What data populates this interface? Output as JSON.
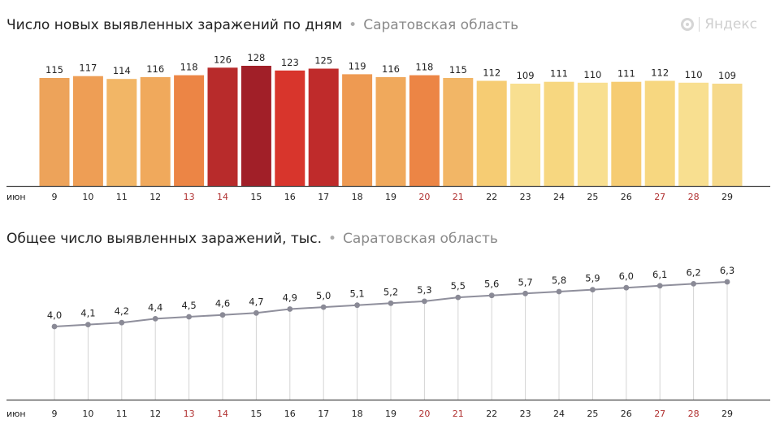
{
  "header": {
    "brand": "Яндекс",
    "brand_icon": "yandex-logo-icon"
  },
  "colors": {
    "weekend_tick": "#b03030",
    "weekday_tick": "#222222",
    "line": "#8f8f9c",
    "point": "#8a8a96"
  },
  "chart_data": [
    {
      "type": "bar",
      "title": "Число новых выявленных заражений по дням",
      "subtitle": "Саратовская область",
      "month_label": "июн",
      "categories": [
        "9",
        "10",
        "11",
        "12",
        "13",
        "14",
        "15",
        "16",
        "17",
        "18",
        "19",
        "20",
        "21",
        "22",
        "23",
        "24",
        "25",
        "26",
        "27",
        "28",
        "29"
      ],
      "weekend": [
        false,
        false,
        false,
        false,
        true,
        true,
        false,
        false,
        false,
        false,
        false,
        true,
        true,
        false,
        false,
        false,
        false,
        false,
        true,
        true,
        false
      ],
      "values": [
        115,
        117,
        114,
        116,
        118,
        126,
        128,
        123,
        125,
        119,
        116,
        118,
        115,
        112,
        109,
        111,
        110,
        111,
        112,
        110,
        109
      ],
      "bar_colors": [
        "#eda35a",
        "#ee9e55",
        "#f2b666",
        "#f0a95c",
        "#ec8545",
        "#b82b2b",
        "#a11f28",
        "#d8352c",
        "#bf2b2b",
        "#ee9a52",
        "#f0a95c",
        "#ec8545",
        "#f2b666",
        "#f6cc73",
        "#f8df90",
        "#f7d780",
        "#f8df90",
        "#f6cc73",
        "#f7d780",
        "#f8df90",
        "#f6d98a"
      ],
      "ylim": [
        0,
        128
      ]
    },
    {
      "type": "line",
      "title": "Общее число выявленных заражений, тыс.",
      "subtitle": "Саратовская область",
      "month_label": "июн",
      "categories": [
        "9",
        "10",
        "11",
        "12",
        "13",
        "14",
        "15",
        "16",
        "17",
        "18",
        "19",
        "20",
        "21",
        "22",
        "23",
        "24",
        "25",
        "26",
        "27",
        "28",
        "29"
      ],
      "weekend": [
        false,
        false,
        false,
        false,
        true,
        true,
        false,
        false,
        false,
        false,
        false,
        true,
        true,
        false,
        false,
        false,
        false,
        false,
        true,
        true,
        false
      ],
      "values": [
        4.0,
        4.1,
        4.2,
        4.4,
        4.5,
        4.6,
        4.7,
        4.9,
        5.0,
        5.1,
        5.2,
        5.3,
        5.5,
        5.6,
        5.7,
        5.8,
        5.9,
        6.0,
        6.1,
        6.2,
        6.3
      ],
      "labels": [
        "4,0",
        "4,1",
        "4,2",
        "4,4",
        "4,5",
        "4,6",
        "4,7",
        "4,9",
        "5,0",
        "5,1",
        "5,2",
        "5,3",
        "5,5",
        "5,6",
        "5,7",
        "5,8",
        "5,9",
        "6,0",
        "6,1",
        "6,2",
        "6,3"
      ]
    }
  ]
}
